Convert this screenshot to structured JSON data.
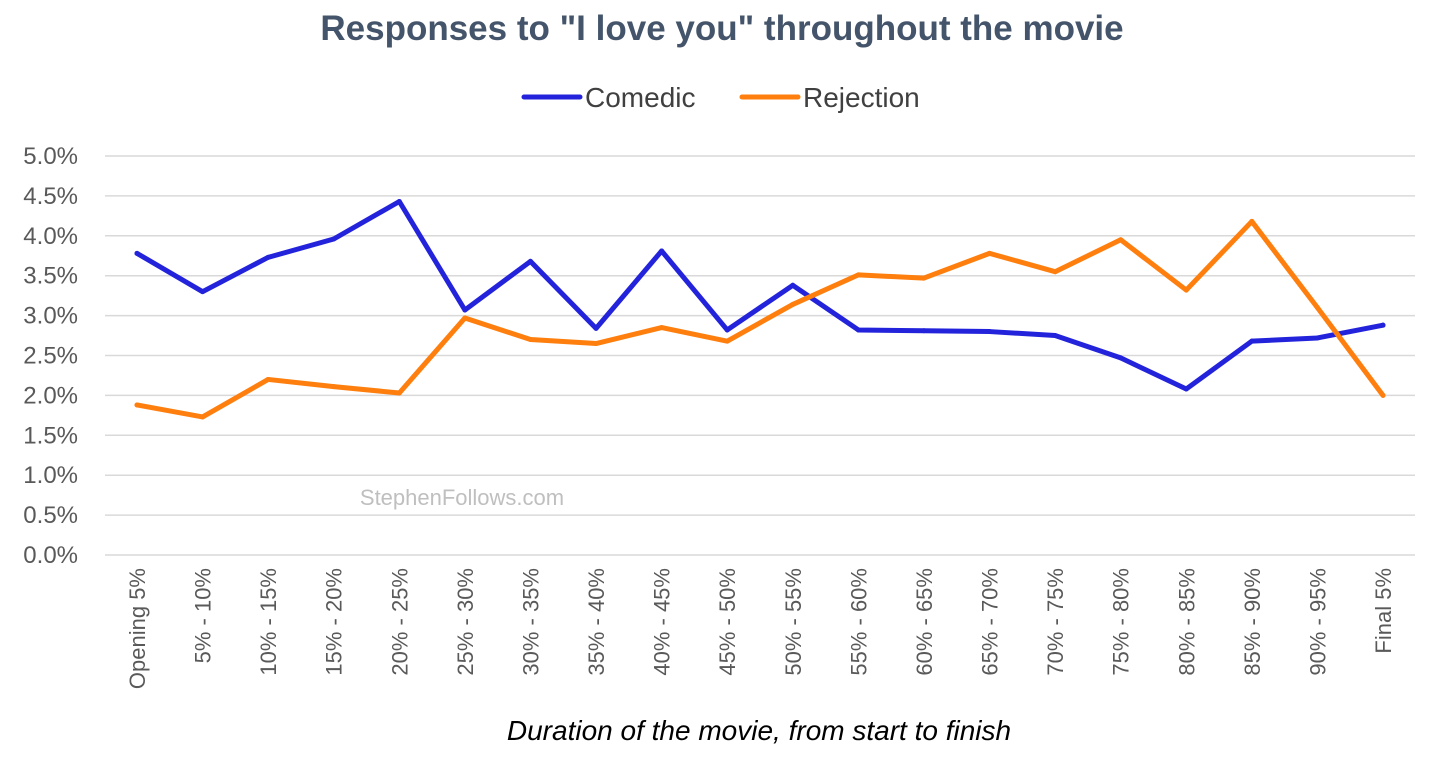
{
  "chart_data": {
    "type": "line",
    "title": "Responses to \"I love you\" throughout the movie",
    "xlabel": "Duration of the movie, from start to finish",
    "ylabel": "",
    "ylim": [
      0,
      5
    ],
    "ytick_values": [
      0,
      0.5,
      1,
      1.5,
      2,
      2.5,
      3,
      3.5,
      4,
      4.5,
      5
    ],
    "ytick_labels": [
      "0.0%",
      "0.5%",
      "1.0%",
      "1.5%",
      "2.0%",
      "2.5%",
      "3.0%",
      "3.5%",
      "4.0%",
      "4.5%",
      "5.0%"
    ],
    "grid": true,
    "legend_position": "top-center",
    "categories": [
      "Opening 5%",
      "5% - 10%",
      "10% - 15%",
      "15% - 20%",
      "20% - 25%",
      "25% - 30%",
      "30% - 35%",
      "35% - 40%",
      "40% - 45%",
      "45% - 50%",
      "50% - 55%",
      "55% - 60%",
      "60% - 65%",
      "65% - 70%",
      "70% - 75%",
      "75% - 80%",
      "80% - 85%",
      "85% - 90%",
      "90% - 95%",
      "Final 5%"
    ],
    "series": [
      {
        "name": "Comedic",
        "color": "#2323DC",
        "values": [
          3.78,
          3.3,
          3.73,
          3.96,
          4.43,
          3.07,
          3.68,
          2.84,
          3.81,
          2.82,
          3.38,
          2.82,
          2.81,
          2.8,
          2.75,
          2.47,
          2.08,
          2.68,
          2.72,
          2.88
        ]
      },
      {
        "name": "Rejection",
        "color": "#FF7F0E",
        "values": [
          1.88,
          1.73,
          2.2,
          2.11,
          2.03,
          2.97,
          2.7,
          2.65,
          2.85,
          2.68,
          3.14,
          3.51,
          3.47,
          3.78,
          3.55,
          3.95,
          3.32,
          4.18,
          3.1,
          2.0
        ]
      }
    ],
    "annotations": [
      "StephenFollows.com"
    ]
  }
}
